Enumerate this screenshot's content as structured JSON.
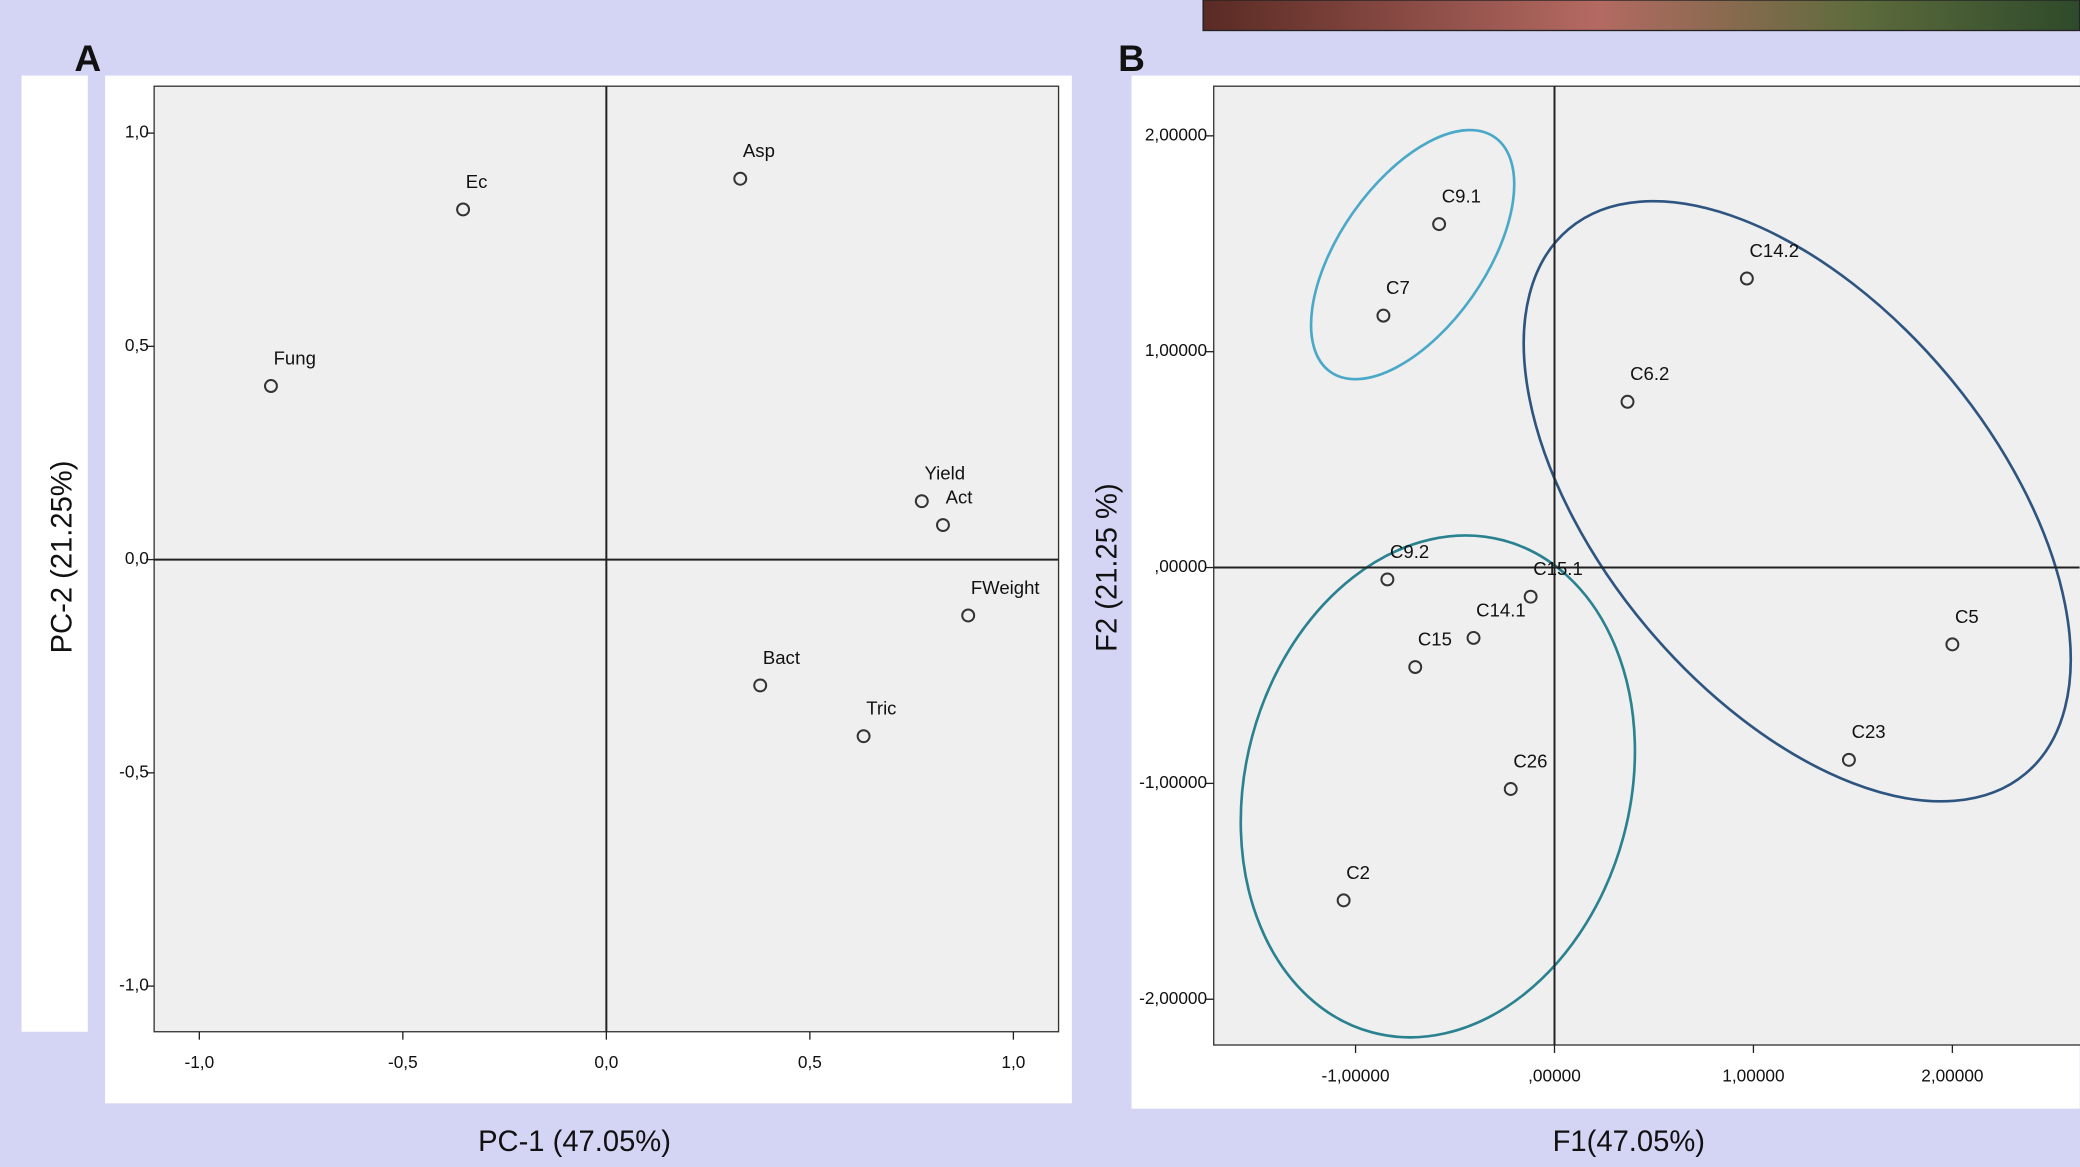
{
  "chart_data": [
    {
      "type": "scatter",
      "panel_label": "A",
      "x_label": "PC-1 (47.05%)",
      "y_label": "PC-2 (21.25%)",
      "labels": [
        "Ec",
        "Asp",
        "Fung",
        "Yield",
        "Act",
        "FWeight",
        "Bact",
        "Tric"
      ],
      "x": [
        -0.352,
        0.329,
        -0.824,
        0.775,
        0.827,
        0.889,
        0.378,
        0.632
      ],
      "values": [
        0.821,
        0.893,
        0.407,
        0.137,
        0.081,
        -0.131,
        -0.295,
        -0.414
      ],
      "color": "#333333",
      "xlim": [
        -1.111,
        1.111
      ],
      "ylim": [
        -1.107,
        1.11
      ],
      "xticks": [
        {
          "value": -1,
          "label": "-1,0"
        },
        {
          "value": -0.5,
          "label": "-0,5"
        },
        {
          "value": 0,
          "label": "0,0"
        },
        {
          "value": 0.5,
          "label": "0,5"
        },
        {
          "value": 1,
          "label": "1,0"
        }
      ],
      "yticks": [
        {
          "value": -1,
          "label": "-1,0"
        },
        {
          "value": -0.5,
          "label": "-0,5"
        },
        {
          "value": 0,
          "label": "0,0"
        },
        {
          "value": 0.5,
          "label": "0,5"
        },
        {
          "value": 1,
          "label": "1,0"
        }
      ]
    },
    {
      "type": "scatter",
      "panel_label": "B",
      "x_label": "F1(47.05%)",
      "y_label": "F2 (21.25 %)",
      "labels": [
        "C9.1",
        "C7",
        "C14.2",
        "C6.2",
        "C9.2",
        "C15.1",
        "C14.1",
        "C15",
        "C5",
        "C23",
        "C26",
        "C2"
      ],
      "x": [
        -0.58,
        -0.86,
        0.967,
        0.367,
        -0.84,
        -0.12,
        -0.407,
        -0.7,
        2.0,
        1.48,
        -0.22,
        -1.06
      ],
      "values": [
        1.591,
        1.167,
        1.339,
        0.768,
        -0.055,
        -0.135,
        -0.326,
        -0.461,
        -0.356,
        -0.891,
        -1.026,
        -1.542
      ],
      "color": "#333333",
      "xlim": [
        -1.713,
        2.64
      ],
      "ylim": [
        -2.212,
        2.23
      ],
      "xticks": [
        {
          "value": -1,
          "label": "-1,00000"
        },
        {
          "value": 0,
          "label": ",00000"
        },
        {
          "value": 1,
          "label": "1,00000"
        },
        {
          "value": 2,
          "label": "2,00000"
        }
      ],
      "yticks": [
        {
          "value": -2,
          "label": "-2,00000"
        },
        {
          "value": -1,
          "label": "-1,00000"
        },
        {
          "value": 0,
          "label": ",00000"
        },
        {
          "value": 1,
          "label": "1,00000"
        },
        {
          "value": 2,
          "label": "2,00000"
        }
      ]
    }
  ]
}
